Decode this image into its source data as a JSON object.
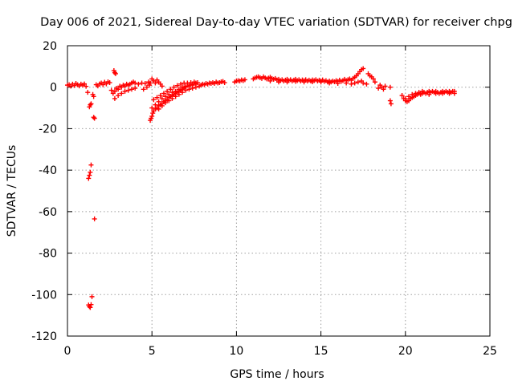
{
  "chart_data": {
    "type": "scatter",
    "title": "Day 006 of 2021, Sidereal Day-to-day VTEC variation (SDTVAR) for receiver chpg",
    "xlabel": "GPS time / hours",
    "ylabel": "SDTVAR / TECUs",
    "xlim": [
      0,
      25
    ],
    "ylim": [
      -120,
      20
    ],
    "x_ticks": [
      0,
      5,
      10,
      15,
      20,
      25
    ],
    "y_ticks": [
      20,
      0,
      -20,
      -40,
      -60,
      -80,
      -100,
      -120
    ],
    "x_tick_labels": [
      "0",
      "5",
      "10",
      "15",
      "20",
      "25"
    ],
    "y_tick_labels": [
      "20",
      "0",
      "-20",
      "-40",
      "-60",
      "-80",
      "-100",
      "-120"
    ],
    "grid": true,
    "legend": null,
    "series": [
      {
        "name": "SDTVAR",
        "color": "#ff0000",
        "marker": "plus",
        "points": [
          [
            0.0,
            1.0
          ],
          [
            0.1,
            1.2
          ],
          [
            0.2,
            0.5
          ],
          [
            0.3,
            1.5
          ],
          [
            0.4,
            0.8
          ],
          [
            0.5,
            1.8
          ],
          [
            0.6,
            1.2
          ],
          [
            0.7,
            0.6
          ],
          [
            0.8,
            1.5
          ],
          [
            0.9,
            1.0
          ],
          [
            1.0,
            1.6
          ],
          [
            1.1,
            0.4
          ],
          [
            1.2,
            -2.5
          ],
          [
            1.3,
            -9.5
          ],
          [
            1.35,
            -8.5
          ],
          [
            1.4,
            -8.0
          ],
          [
            1.5,
            -3.5
          ],
          [
            1.55,
            -14.5
          ],
          [
            1.6,
            -15.0
          ],
          [
            1.55,
            -4.5
          ],
          [
            1.25,
            -44.0
          ],
          [
            1.3,
            -42.5
          ],
          [
            1.35,
            -41.0
          ],
          [
            1.4,
            -37.5
          ],
          [
            1.6,
            -63.5
          ],
          [
            1.25,
            -105.0
          ],
          [
            1.3,
            -105.8
          ],
          [
            1.35,
            -106.2
          ],
          [
            1.4,
            -104.8
          ],
          [
            1.45,
            -101.0
          ],
          [
            1.7,
            1.2
          ],
          [
            1.8,
            0.6
          ],
          [
            1.9,
            1.6
          ],
          [
            2.0,
            2.0
          ],
          [
            2.1,
            1.2
          ],
          [
            2.2,
            2.4
          ],
          [
            2.3,
            1.6
          ],
          [
            2.4,
            2.6
          ],
          [
            2.5,
            2.2
          ],
          [
            2.75,
            8.0
          ],
          [
            2.8,
            7.0
          ],
          [
            2.85,
            6.5
          ],
          [
            2.6,
            -1.5
          ],
          [
            2.7,
            -3.0
          ],
          [
            2.8,
            -2.0
          ],
          [
            2.9,
            -0.5
          ],
          [
            3.0,
            -1.0
          ],
          [
            3.1,
            0.5
          ],
          [
            3.2,
            0.0
          ],
          [
            3.3,
            1.0
          ],
          [
            3.4,
            0.5
          ],
          [
            3.5,
            1.5
          ],
          [
            3.6,
            1.0
          ],
          [
            3.7,
            1.5
          ],
          [
            3.8,
            2.0
          ],
          [
            3.9,
            2.5
          ],
          [
            4.0,
            2.0
          ],
          [
            2.8,
            -5.5
          ],
          [
            3.0,
            -4.0
          ],
          [
            3.2,
            -3.0
          ],
          [
            3.4,
            -2.0
          ],
          [
            3.6,
            -1.5
          ],
          [
            3.8,
            -1.0
          ],
          [
            4.0,
            -0.5
          ],
          [
            4.2,
            1.5
          ],
          [
            4.4,
            2.0
          ],
          [
            4.6,
            1.8
          ],
          [
            4.8,
            2.5
          ],
          [
            4.9,
            2.0
          ],
          [
            4.5,
            -1.0
          ],
          [
            4.7,
            0.0
          ],
          [
            4.85,
            1.0
          ],
          [
            4.9,
            -16.0
          ],
          [
            4.95,
            -15.0
          ],
          [
            5.0,
            -14.0
          ],
          [
            5.05,
            -12.5
          ],
          [
            5.1,
            -11.5
          ],
          [
            5.2,
            -10.5
          ],
          [
            5.3,
            -10.0
          ],
          [
            5.4,
            -9.0
          ],
          [
            5.5,
            -8.5
          ],
          [
            5.6,
            -8.0
          ],
          [
            5.7,
            -7.0
          ],
          [
            5.8,
            -6.5
          ],
          [
            5.9,
            -6.0
          ],
          [
            6.0,
            -5.0
          ],
          [
            6.1,
            -4.5
          ],
          [
            6.2,
            -4.0
          ],
          [
            6.3,
            -3.5
          ],
          [
            6.4,
            -3.0
          ],
          [
            6.5,
            -2.5
          ],
          [
            6.6,
            -2.0
          ],
          [
            6.7,
            -1.5
          ],
          [
            6.8,
            -1.0
          ],
          [
            6.9,
            -0.5
          ],
          [
            7.0,
            0.0
          ],
          [
            7.2,
            0.5
          ],
          [
            7.4,
            1.0
          ],
          [
            7.6,
            1.5
          ],
          [
            5.0,
            -10.0
          ],
          [
            5.2,
            -8.5
          ],
          [
            5.4,
            -7.0
          ],
          [
            5.6,
            -5.5
          ],
          [
            5.8,
            -4.5
          ],
          [
            6.0,
            -3.5
          ],
          [
            6.2,
            -2.5
          ],
          [
            6.4,
            -2.0
          ],
          [
            6.6,
            -1.0
          ],
          [
            6.8,
            0.0
          ],
          [
            7.0,
            0.5
          ],
          [
            7.2,
            1.0
          ],
          [
            7.4,
            1.5
          ],
          [
            7.6,
            2.0
          ],
          [
            5.1,
            -6.0
          ],
          [
            5.3,
            -5.0
          ],
          [
            5.5,
            -4.0
          ],
          [
            5.7,
            -3.0
          ],
          [
            5.9,
            -2.0
          ],
          [
            6.1,
            -1.0
          ],
          [
            6.3,
            0.0
          ],
          [
            6.5,
            0.8
          ],
          [
            6.7,
            1.5
          ],
          [
            6.9,
            2.0
          ],
          [
            7.1,
            2.0
          ],
          [
            7.3,
            2.2
          ],
          [
            7.5,
            2.5
          ],
          [
            7.7,
            2.2
          ],
          [
            5.4,
            -10.5
          ],
          [
            5.6,
            -9.0
          ],
          [
            5.8,
            -7.5
          ],
          [
            6.0,
            -6.5
          ],
          [
            6.2,
            -5.5
          ],
          [
            6.4,
            -4.5
          ],
          [
            6.6,
            -3.5
          ],
          [
            6.8,
            -2.5
          ],
          [
            7.0,
            -1.5
          ],
          [
            7.2,
            -1.0
          ],
          [
            7.4,
            -0.5
          ],
          [
            7.6,
            0.0
          ],
          [
            5.0,
            4.0
          ],
          [
            5.1,
            3.0
          ],
          [
            5.2,
            2.0
          ],
          [
            5.3,
            3.5
          ],
          [
            5.4,
            2.5
          ],
          [
            5.5,
            1.5
          ],
          [
            5.6,
            0.5
          ],
          [
            7.8,
            0.5
          ],
          [
            7.9,
            1.0
          ],
          [
            8.0,
            1.5
          ],
          [
            8.1,
            1.2
          ],
          [
            8.2,
            1.8
          ],
          [
            8.3,
            1.5
          ],
          [
            8.4,
            2.0
          ],
          [
            8.5,
            1.8
          ],
          [
            8.6,
            2.2
          ],
          [
            8.7,
            1.8
          ],
          [
            8.8,
            2.5
          ],
          [
            8.9,
            2.0
          ],
          [
            9.0,
            2.2
          ],
          [
            9.1,
            2.6
          ],
          [
            9.2,
            2.8
          ],
          [
            9.3,
            2.2
          ],
          [
            9.9,
            2.5
          ],
          [
            10.0,
            3.0
          ],
          [
            10.1,
            3.2
          ],
          [
            10.2,
            3.0
          ],
          [
            10.3,
            3.5
          ],
          [
            10.4,
            3.2
          ],
          [
            10.5,
            3.6
          ],
          [
            11.0,
            4.0
          ],
          [
            11.1,
            4.5
          ],
          [
            11.2,
            4.8
          ],
          [
            11.3,
            5.0
          ],
          [
            11.4,
            4.6
          ],
          [
            11.5,
            4.2
          ],
          [
            11.6,
            5.0
          ],
          [
            11.7,
            4.5
          ],
          [
            11.8,
            4.0
          ],
          [
            11.9,
            4.4
          ],
          [
            12.0,
            4.8
          ],
          [
            12.1,
            4.2
          ],
          [
            12.2,
            3.8
          ],
          [
            12.3,
            4.2
          ],
          [
            12.4,
            3.5
          ],
          [
            12.5,
            3.8
          ],
          [
            12.6,
            3.2
          ],
          [
            12.7,
            3.6
          ],
          [
            12.8,
            3.0
          ],
          [
            12.9,
            3.4
          ],
          [
            13.0,
            3.8
          ],
          [
            13.1,
            3.2
          ],
          [
            13.2,
            3.6
          ],
          [
            13.3,
            3.0
          ],
          [
            13.4,
            3.4
          ],
          [
            13.5,
            3.8
          ],
          [
            13.6,
            3.2
          ],
          [
            13.7,
            3.6
          ],
          [
            13.8,
            3.0
          ],
          [
            13.9,
            3.5
          ],
          [
            14.0,
            3.2
          ],
          [
            14.1,
            3.6
          ],
          [
            14.2,
            3.0
          ],
          [
            14.3,
            3.4
          ],
          [
            14.4,
            3.0
          ],
          [
            14.5,
            3.5
          ],
          [
            14.6,
            3.2
          ],
          [
            14.7,
            3.6
          ],
          [
            14.8,
            3.0
          ],
          [
            14.9,
            3.4
          ],
          [
            15.0,
            3.0
          ],
          [
            15.1,
            3.5
          ],
          [
            15.2,
            2.8
          ],
          [
            15.3,
            3.2
          ],
          [
            15.4,
            2.5
          ],
          [
            15.5,
            3.0
          ],
          [
            15.6,
            2.5
          ],
          [
            15.7,
            3.0
          ],
          [
            15.8,
            2.6
          ],
          [
            15.9,
            3.2
          ],
          [
            16.0,
            2.8
          ],
          [
            16.1,
            3.4
          ],
          [
            16.2,
            2.8
          ],
          [
            16.3,
            3.2
          ],
          [
            16.4,
            3.8
          ],
          [
            16.5,
            3.2
          ],
          [
            16.6,
            3.6
          ],
          [
            16.7,
            4.0
          ],
          [
            16.8,
            3.4
          ],
          [
            16.9,
            4.2
          ],
          [
            17.0,
            4.8
          ],
          [
            17.1,
            5.5
          ],
          [
            17.2,
            6.5
          ],
          [
            17.3,
            7.5
          ],
          [
            17.4,
            8.5
          ],
          [
            17.5,
            9.0
          ],
          [
            12.0,
            3.0
          ],
          [
            12.5,
            2.5
          ],
          [
            13.0,
            2.5
          ],
          [
            13.5,
            2.8
          ],
          [
            14.0,
            2.5
          ],
          [
            14.5,
            2.6
          ],
          [
            15.0,
            2.5
          ],
          [
            15.5,
            2.0
          ],
          [
            16.0,
            1.8
          ],
          [
            16.5,
            2.0
          ],
          [
            16.8,
            1.5
          ],
          [
            17.0,
            2.0
          ],
          [
            17.2,
            2.5
          ],
          [
            17.4,
            3.0
          ],
          [
            17.5,
            2.0
          ],
          [
            17.7,
            1.5
          ],
          [
            17.8,
            6.5
          ],
          [
            17.9,
            5.5
          ],
          [
            18.0,
            5.0
          ],
          [
            18.1,
            4.0
          ],
          [
            18.2,
            2.5
          ],
          [
            18.4,
            -0.5
          ],
          [
            18.5,
            1.0
          ],
          [
            18.6,
            0.0
          ],
          [
            18.7,
            -1.0
          ],
          [
            18.8,
            0.5
          ],
          [
            19.1,
            0.0
          ],
          [
            19.1,
            -6.5
          ],
          [
            19.15,
            -8.0
          ],
          [
            19.8,
            -4.0
          ],
          [
            19.9,
            -5.5
          ],
          [
            20.0,
            -6.5
          ],
          [
            20.1,
            -7.0
          ],
          [
            20.2,
            -6.5
          ],
          [
            20.3,
            -5.5
          ],
          [
            20.4,
            -5.0
          ],
          [
            20.5,
            -4.5
          ],
          [
            20.6,
            -4.0
          ],
          [
            20.7,
            -3.5
          ],
          [
            20.8,
            -3.0
          ],
          [
            20.9,
            -3.5
          ],
          [
            21.0,
            -3.0
          ],
          [
            21.1,
            -2.5
          ],
          [
            21.2,
            -3.0
          ],
          [
            21.3,
            -2.5
          ],
          [
            21.4,
            -2.0
          ],
          [
            21.5,
            -2.5
          ],
          [
            21.6,
            -2.0
          ],
          [
            21.7,
            -2.5
          ],
          [
            21.8,
            -3.0
          ],
          [
            21.9,
            -2.5
          ],
          [
            22.0,
            -3.0
          ],
          [
            22.1,
            -2.5
          ],
          [
            22.2,
            -3.0
          ],
          [
            22.3,
            -2.5
          ],
          [
            22.4,
            -2.0
          ],
          [
            22.5,
            -2.5
          ],
          [
            22.6,
            -3.0
          ],
          [
            22.7,
            -2.5
          ],
          [
            22.8,
            -2.0
          ],
          [
            22.9,
            -3.0
          ],
          [
            20.0,
            -5.5
          ],
          [
            20.2,
            -4.5
          ],
          [
            20.4,
            -3.5
          ],
          [
            20.6,
            -3.0
          ],
          [
            20.8,
            -2.5
          ],
          [
            21.0,
            -2.0
          ],
          [
            21.4,
            -3.5
          ],
          [
            21.8,
            -2.0
          ],
          [
            22.2,
            -2.0
          ],
          [
            22.6,
            -2.0
          ],
          [
            22.9,
            -2.0
          ]
        ]
      }
    ]
  }
}
